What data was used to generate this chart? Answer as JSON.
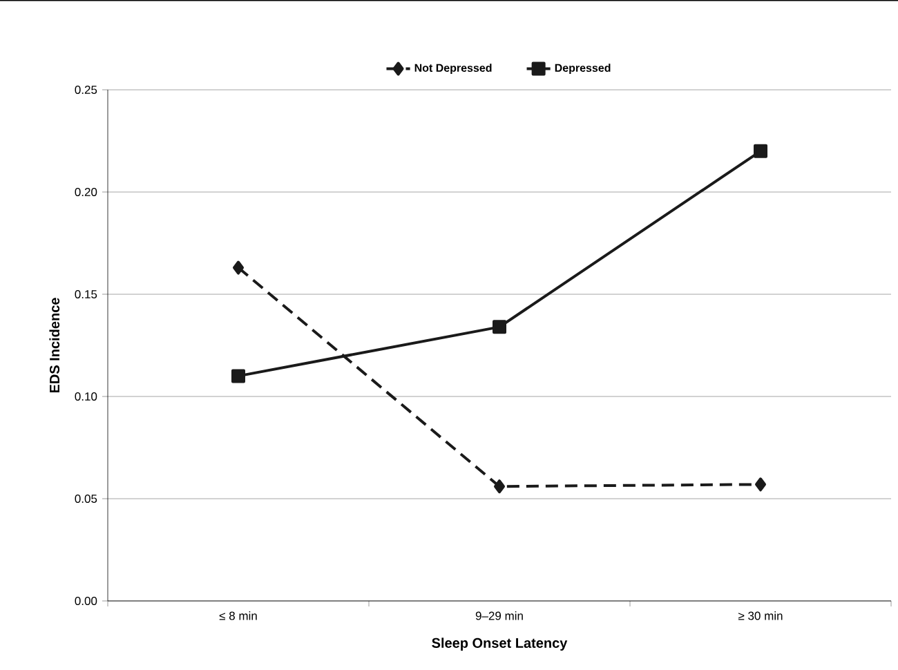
{
  "chart_data": {
    "type": "line",
    "xlabel": "Sleep Onset Latency",
    "ylabel": "EDS Incidence",
    "categories": [
      "≤ 8 min",
      "9–29 min",
      "≥ 30 min"
    ],
    "ylim": [
      0,
      0.25
    ],
    "yticks": [
      {
        "value": 0,
        "label": "0.00"
      },
      {
        "value": 0.05,
        "label": "0.05"
      },
      {
        "value": 0.1,
        "label": "0.10"
      },
      {
        "value": 0.15,
        "label": "0.15"
      },
      {
        "value": 0.2,
        "label": "0.20"
      },
      {
        "value": 0.25,
        "label": "0.25"
      }
    ],
    "grid": "y",
    "legend": "top",
    "series": [
      {
        "name": "Not Depressed",
        "color": "#1a1a1a",
        "marker": "diamond",
        "line_style": "dashed",
        "values": [
          0.163,
          0.056,
          0.057
        ]
      },
      {
        "name": "Depressed",
        "color": "#1a1a1a",
        "marker": "square",
        "line_style": "solid",
        "values": [
          0.11,
          0.134,
          0.22
        ]
      }
    ]
  }
}
